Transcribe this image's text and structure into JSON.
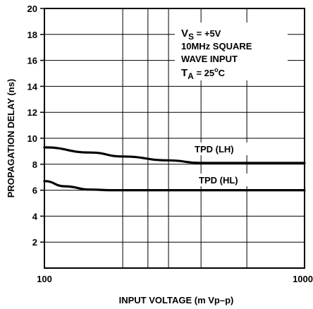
{
  "chart_data": {
    "type": "line",
    "xlabel": "INPUT VOLTAGE (m Vp–p)",
    "ylabel": "PROPAGATION DELAY (ns)",
    "x_scale": "log",
    "xlim": [
      100,
      1000
    ],
    "ylim": [
      0,
      20
    ],
    "x_tick_labels": [
      "100",
      "1000"
    ],
    "y_ticks": [
      2,
      4,
      6,
      8,
      10,
      12,
      14,
      16,
      18,
      20
    ],
    "x_gridlines": [
      200,
      250,
      300,
      400,
      600
    ],
    "grid": true,
    "annotation": {
      "vs_main": "V",
      "vs_sub": "S",
      "vs_value": " = +5V",
      "line2": "10MHz SQUARE",
      "line3": "WAVE INPUT",
      "ta_main": "T",
      "ta_sub": "A",
      "ta_value": " = 25",
      "ta_deg": "o",
      "ta_unit": "C"
    },
    "series": [
      {
        "name": "TPD (LH)",
        "x": [
          100,
          150,
          200,
          300,
          400,
          600,
          1000
        ],
        "y": [
          9.3,
          8.9,
          8.6,
          8.3,
          8.1,
          8.1,
          8.1
        ]
      },
      {
        "name": "TPD (HL)",
        "x": [
          100,
          120,
          150,
          180,
          200,
          300,
          600,
          1000
        ],
        "y": [
          6.7,
          6.3,
          6.05,
          6.0,
          6.0,
          6.0,
          6.0,
          6.0
        ]
      }
    ]
  }
}
